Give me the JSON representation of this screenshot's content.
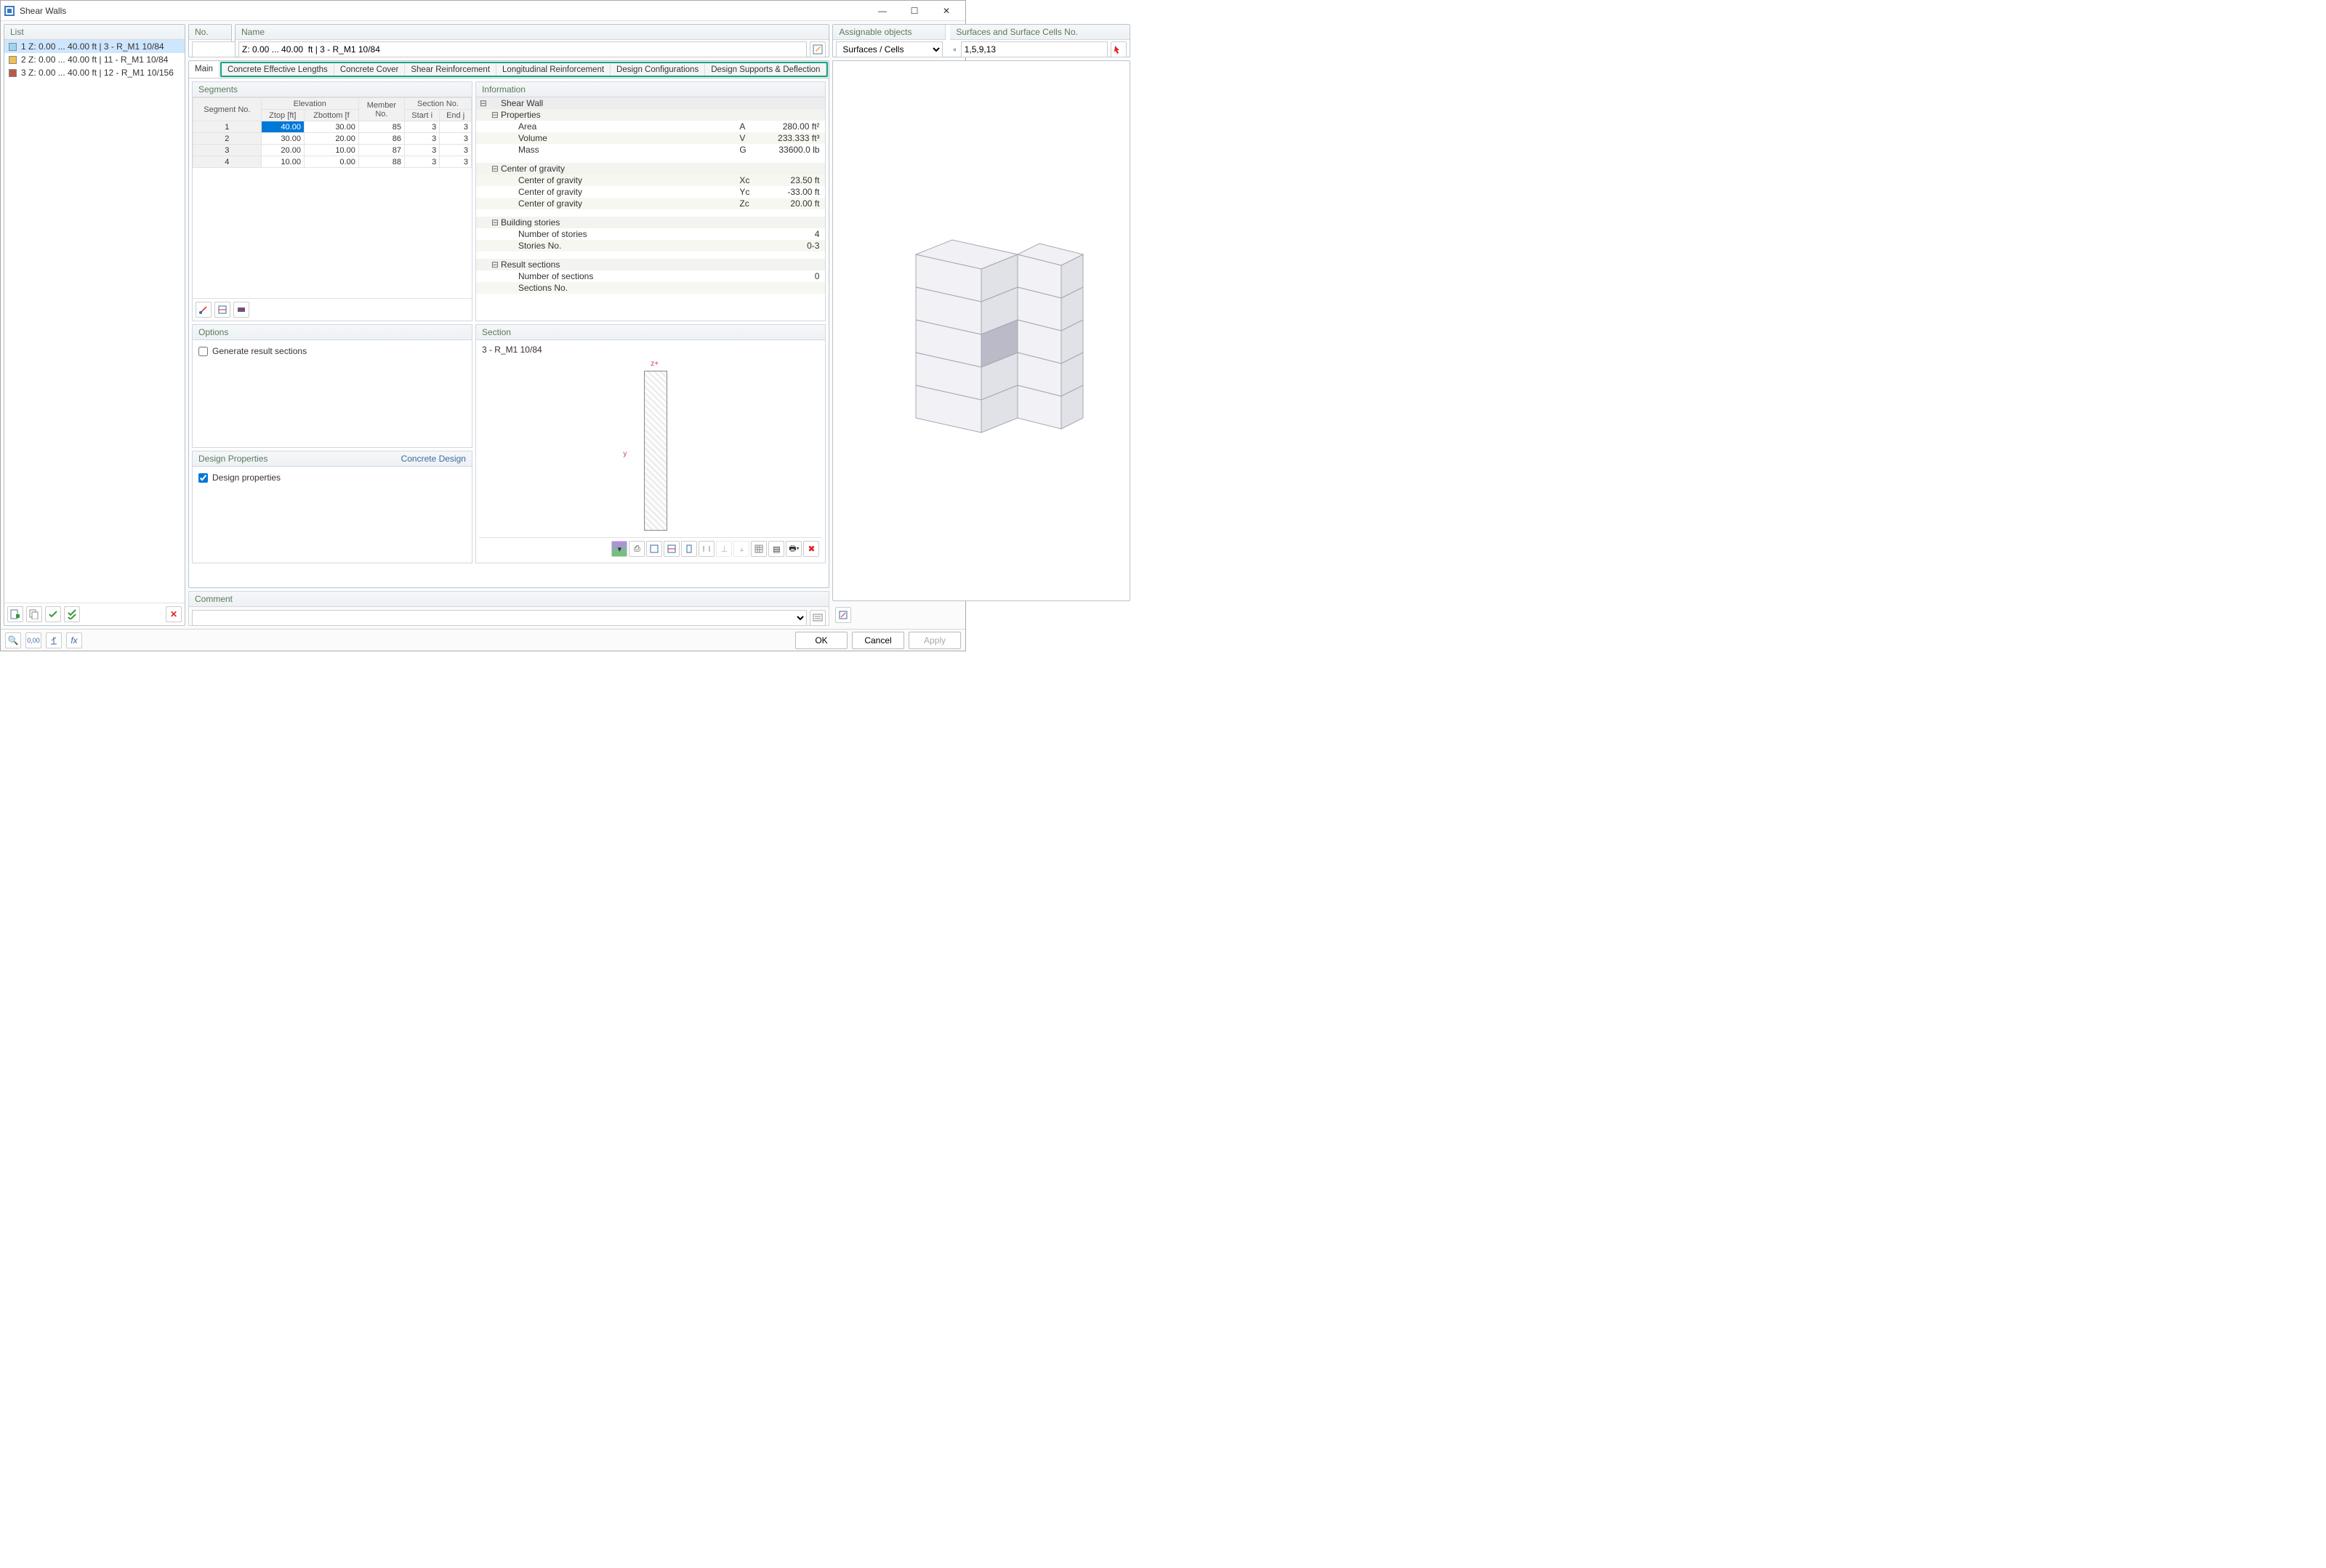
{
  "window": {
    "title": "Shear Walls"
  },
  "list": {
    "header": "List",
    "items": [
      {
        "index": "1",
        "label": "Z: 0.00 ... 40.00 ft | 3 - R_M1 10/84",
        "color": "#9fd4f0",
        "selected": true
      },
      {
        "index": "2",
        "label": "Z: 0.00 ... 40.00 ft | 11 - R_M1 10/84",
        "color": "#f0c04a",
        "selected": false
      },
      {
        "index": "3",
        "label": "Z: 0.00 ... 40.00 ft | 12 - R_M1 10/156",
        "color": "#b85a4a",
        "selected": false
      }
    ]
  },
  "no_panel": {
    "header": "No.",
    "value": ""
  },
  "name_panel": {
    "header": "Name",
    "value": "Z: 0.00 ... 40.00  ft | 3 - R_M1 10/84"
  },
  "assignable": {
    "header_left": "Assignable objects",
    "header_right": "Surfaces and Surface Cells No.",
    "combo_value": "Surfaces / Cells",
    "cells_value": "1,5,9,13"
  },
  "tabs": {
    "items": [
      "Main",
      "Concrete Effective Lengths",
      "Concrete Cover",
      "Shear Reinforcement",
      "Longitudinal Reinforcement",
      "Design Configurations",
      "Design Supports & Deflection"
    ],
    "highlight_start": 1,
    "highlight_end": 6,
    "highlight_color": "#0fa583",
    "active": 0
  },
  "segments": {
    "header": "Segments",
    "col_group": [
      "Segment No.",
      "Elevation",
      "Member",
      "Section No."
    ],
    "cols": [
      "Segment No.",
      "Ztop [ft]",
      "Zbottom [f",
      "No.",
      "Start i",
      "End j"
    ],
    "rows": [
      [
        "1",
        "40.00",
        "30.00",
        "85",
        "3",
        "3"
      ],
      [
        "2",
        "30.00",
        "20.00",
        "86",
        "3",
        "3"
      ],
      [
        "3",
        "20.00",
        "10.00",
        "87",
        "3",
        "3"
      ],
      [
        "4",
        "10.00",
        "0.00",
        "88",
        "3",
        "3"
      ]
    ],
    "selected_row": 0,
    "selected_col": 1
  },
  "information": {
    "header": "Information",
    "rows": [
      {
        "t": "g",
        "l": "Shear Wall"
      },
      {
        "t": "sg",
        "l": "Properties"
      },
      {
        "t": "d",
        "l": "Area",
        "s": "A",
        "v": "280.00 ft²"
      },
      {
        "t": "d",
        "l": "Volume",
        "s": "V",
        "v": "233.333 ft³"
      },
      {
        "t": "d",
        "l": "Mass",
        "s": "G",
        "v": "33600.0 lb"
      },
      {
        "t": "sp"
      },
      {
        "t": "sg",
        "l": "Center of gravity"
      },
      {
        "t": "d",
        "l": "Center of gravity",
        "s": "Xc",
        "v": "23.50 ft"
      },
      {
        "t": "d",
        "l": "Center of gravity",
        "s": "Yc",
        "v": "-33.00 ft"
      },
      {
        "t": "d",
        "l": "Center of gravity",
        "s": "Zc",
        "v": "20.00 ft"
      },
      {
        "t": "sp"
      },
      {
        "t": "sg",
        "l": "Building stories"
      },
      {
        "t": "d",
        "l": "Number of stories",
        "s": "",
        "v": "4"
      },
      {
        "t": "d",
        "l": "Stories No.",
        "s": "",
        "v": "0-3"
      },
      {
        "t": "sp"
      },
      {
        "t": "sg",
        "l": "Result sections"
      },
      {
        "t": "d",
        "l": "Number of sections",
        "s": "",
        "v": "0"
      },
      {
        "t": "d",
        "l": "Sections No.",
        "s": "",
        "v": ""
      }
    ]
  },
  "options": {
    "header": "Options",
    "chk_label": "Generate result sections",
    "chk_checked": false
  },
  "design": {
    "header_left": "Design Properties",
    "header_right": "Concrete Design",
    "chk_label": "Design properties",
    "chk_checked": true
  },
  "section": {
    "header": "Section",
    "label": "3 - R_M1 10/84",
    "axis_z": "z+",
    "axis_y": "y",
    "rect_color": "#e8e8e8",
    "rect_border": "#888888"
  },
  "comment": {
    "header": "Comment",
    "value": ""
  },
  "view3d": {
    "floor_z": [
      280,
      235,
      190,
      145,
      100,
      55
    ],
    "line_color": "#a8a8b0",
    "fill_color": "#e6e6ee",
    "fill_dark": "#c9c9d6",
    "highlight_fill": "#b6b6c4"
  },
  "footer": {
    "ok": "OK",
    "cancel": "Cancel",
    "apply": "Apply"
  }
}
